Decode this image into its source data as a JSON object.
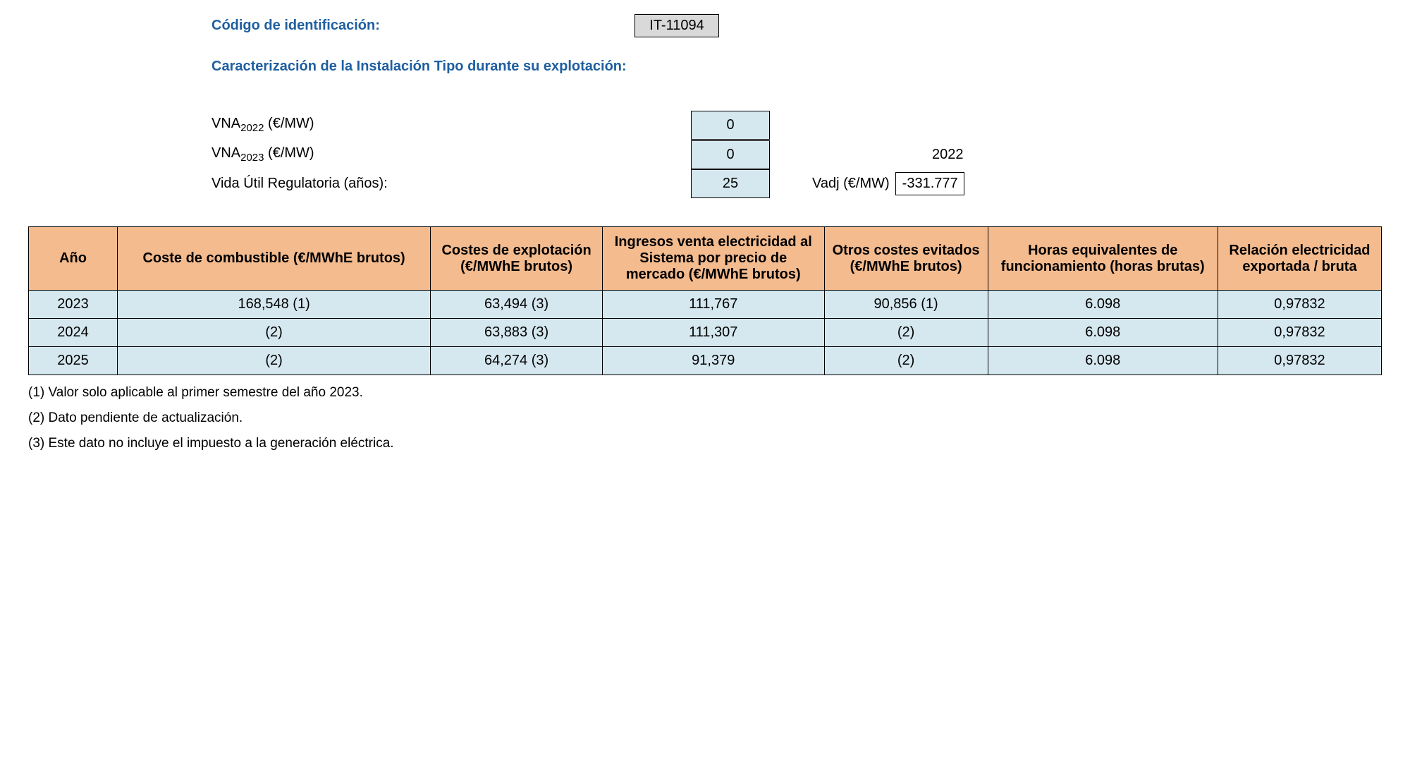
{
  "header": {
    "code_label": "Código de identificación:",
    "code_value": "IT-11094",
    "section_title": "Caracterización de la Instalación Tipo durante su explotación:"
  },
  "params": {
    "vna2022_label_prefix": "VNA",
    "vna2022_sub": "2022",
    "vna2022_unit": " (€/MW)",
    "vna2022_value": "0",
    "vna2023_label_prefix": "VNA",
    "vna2023_sub": "2023",
    "vna2023_unit": " (€/MW)",
    "vna2023_value": "0",
    "year_right": "2022",
    "vida_label": "Vida Útil Regulatoria (años):",
    "vida_value": "25",
    "vadj_label": "Vadj (€/MW)",
    "vadj_value": "-331.777"
  },
  "table": {
    "headers": {
      "year": "Año",
      "fuel": "Coste de combustible (€/MWhE brutos)",
      "expl": "Costes de explotación (€/MWhE brutos)",
      "ing": "Ingresos venta electricidad al Sistema por precio de mercado (€/MWhE brutos)",
      "otros": "Otros costes evitados (€/MWhE brutos)",
      "horas": "Horas equivalentes de funcionamiento (horas brutas)",
      "rel": "Relación electricidad exportada / bruta"
    },
    "rows": [
      {
        "year": "2023",
        "fuel": "168,548 (1)",
        "expl": "63,494 (3)",
        "ing": "111,767",
        "otros": "90,856 (1)",
        "horas": "6.098",
        "rel": "0,97832"
      },
      {
        "year": "2024",
        "fuel": "(2)",
        "expl": "63,883 (3)",
        "ing": "111,307",
        "otros": "(2)",
        "horas": "6.098",
        "rel": "0,97832"
      },
      {
        "year": "2025",
        "fuel": "(2)",
        "expl": "64,274 (3)",
        "ing": "91,379",
        "otros": "(2)",
        "horas": "6.098",
        "rel": "0,97832"
      }
    ]
  },
  "footnotes": {
    "n1": "(1) Valor solo aplicable al primer semestre del año 2023.",
    "n2": "(2) Dato pendiente de actualización.",
    "n3": "(3) Este dato no incluye el impuesto a la generación eléctrica."
  }
}
